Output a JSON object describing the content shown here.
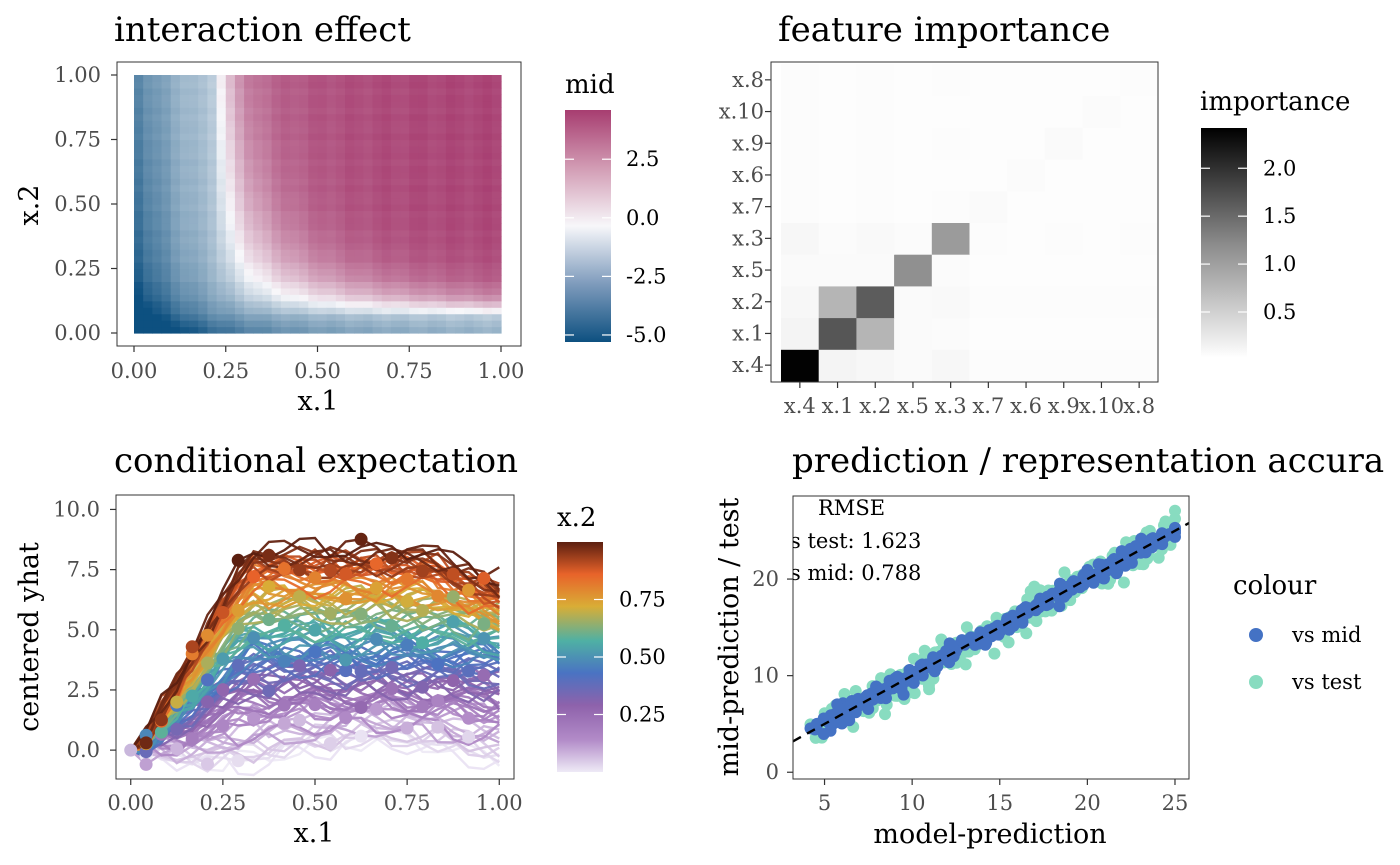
{
  "chart_data": [
    {
      "type": "heatmap",
      "title": "interaction effect",
      "xlabel": "x.1",
      "ylabel": "x.2",
      "xlim": [
        0,
        1
      ],
      "ylim": [
        0,
        1
      ],
      "x_ticks": [
        "0.00",
        "0.25",
        "0.50",
        "0.75",
        "1.00"
      ],
      "y_ticks": [
        "0.00",
        "0.25",
        "0.50",
        "0.75",
        "1.00"
      ],
      "x_values": [
        0.0,
        0.25,
        0.5,
        0.75,
        1.0
      ],
      "y_values": [
        0.0,
        0.25,
        0.5,
        0.75,
        1.0
      ],
      "legend": {
        "title": "mid",
        "range": [
          -5.3,
          4.6
        ],
        "ticks": [
          "2.5",
          "0.0",
          "-2.5",
          "-5.0"
        ],
        "tick_values": [
          2.5,
          0.0,
          -2.5,
          -5.0
        ],
        "colors": {
          "low": "#0d5080",
          "mid": "#f7f7fa",
          "high": "#a73d70"
        }
      }
    },
    {
      "type": "heatmap",
      "title": "feature importance",
      "categories": [
        "x.4",
        "x.1",
        "x.2",
        "x.5",
        "x.3",
        "x.7",
        "x.6",
        "x.9",
        "x.10",
        "x.8"
      ],
      "rows_bottom_to_top": [
        "x.4",
        "x.1",
        "x.2",
        "x.5",
        "x.3",
        "x.7",
        "x.6",
        "x.9",
        "x.10",
        "x.8"
      ],
      "values": [
        [
          2.4,
          0.1,
          0.08,
          0.05,
          0.08,
          0.03,
          0.03,
          0.03,
          0.03,
          0.03
        ],
        [
          0.1,
          1.6,
          0.7,
          0.05,
          0.04,
          0.02,
          0.02,
          0.02,
          0.02,
          0.02
        ],
        [
          0.08,
          0.7,
          1.55,
          0.05,
          0.06,
          0.03,
          0.03,
          0.03,
          0.03,
          0.03
        ],
        [
          0.05,
          0.05,
          0.05,
          1.05,
          0.04,
          0.02,
          0.02,
          0.02,
          0.02,
          0.02
        ],
        [
          0.08,
          0.04,
          0.06,
          0.04,
          0.95,
          0.03,
          0.02,
          0.03,
          0.02,
          0.03
        ],
        [
          0.03,
          0.02,
          0.03,
          0.02,
          0.03,
          0.05,
          0.02,
          0.02,
          0.02,
          0.02
        ],
        [
          0.03,
          0.02,
          0.03,
          0.02,
          0.02,
          0.02,
          0.04,
          0.02,
          0.02,
          0.02
        ],
        [
          0.03,
          0.02,
          0.03,
          0.02,
          0.03,
          0.02,
          0.02,
          0.05,
          0.02,
          0.02
        ],
        [
          0.03,
          0.02,
          0.03,
          0.02,
          0.02,
          0.02,
          0.02,
          0.02,
          0.04,
          0.02
        ],
        [
          0.03,
          0.02,
          0.03,
          0.02,
          0.03,
          0.02,
          0.02,
          0.02,
          0.02,
          0.03
        ]
      ],
      "legend": {
        "title": "importance",
        "range": [
          0.02,
          2.42
        ],
        "ticks": [
          "2.0",
          "1.5",
          "1.0",
          "0.5"
        ],
        "tick_values": [
          2.0,
          1.5,
          1.0,
          0.5
        ],
        "colors": {
          "low": "#ffffff",
          "high": "#000000"
        }
      }
    },
    {
      "type": "line",
      "title": "conditional expectation",
      "xlabel": "x.1",
      "ylabel": "centered yhat",
      "xlim": [
        -0.04,
        1.04
      ],
      "ylim": [
        -1.2,
        10.6
      ],
      "x_ticks": [
        "0.00",
        "0.25",
        "0.50",
        "0.75",
        "1.00"
      ],
      "x_tick_values": [
        0.0,
        0.25,
        0.5,
        0.75,
        1.0
      ],
      "y_ticks": [
        "0.0",
        "2.5",
        "5.0",
        "7.5",
        "10.0"
      ],
      "y_tick_values": [
        0.0,
        2.5,
        5.0,
        7.5,
        10.0
      ],
      "x": [
        0.0,
        0.0417,
        0.0833,
        0.125,
        0.1667,
        0.2083,
        0.25,
        0.2917,
        0.3333,
        0.375,
        0.4167,
        0.4583,
        0.5,
        0.5417,
        0.5833,
        0.625,
        0.6667,
        0.7083,
        0.75,
        0.7917,
        0.8333,
        0.875,
        0.9167,
        0.9583,
        1.0
      ],
      "n_lines": 100,
      "color_var_range": [
        0.0,
        1.0
      ],
      "note": "individual conditional expectation curves; each curve rises from 0 to a plateau that grows with x.2; one point per curve at the observed x.1",
      "legend": {
        "title": "x.2",
        "ticks": [
          "0.75",
          "0.50",
          "0.25"
        ],
        "tick_values": [
          0.75,
          0.5,
          0.25
        ],
        "colors": [
          "#eeeaf6",
          "#b28bc8",
          "#8e62ab",
          "#4a73c2",
          "#4fb0a4",
          "#d9ad36",
          "#e8632a",
          "#5b1f10"
        ]
      }
    },
    {
      "type": "scatter",
      "title": "prediction / representation accura",
      "xlabel": "model-prediction",
      "ylabel": "mid-prediction / test",
      "xlim": [
        3.2,
        25.8
      ],
      "ylim": [
        -0.7,
        28.6
      ],
      "x_ticks": [
        "5",
        "10",
        "15",
        "20",
        "25"
      ],
      "x_tick_values": [
        5,
        10,
        15,
        20,
        25
      ],
      "y_ticks": [
        "0",
        "10",
        "20"
      ],
      "y_tick_values": [
        0,
        10,
        20
      ],
      "reference_line": {
        "slope": 1,
        "intercept": 0,
        "style": "dashed"
      },
      "annotation": [
        "RMSE",
        "s test: 1.623",
        "s mid: 0.788"
      ],
      "series": [
        {
          "name": "vs mid",
          "color": "#4472c4",
          "rmse": 0.788,
          "n_points": 300
        },
        {
          "name": "vs test",
          "color": "#88dcc0",
          "rmse": 1.623,
          "n_points": 300
        }
      ],
      "legend": {
        "title": "colour",
        "entries": [
          "vs mid",
          "vs test"
        ],
        "placement": "right"
      }
    }
  ]
}
